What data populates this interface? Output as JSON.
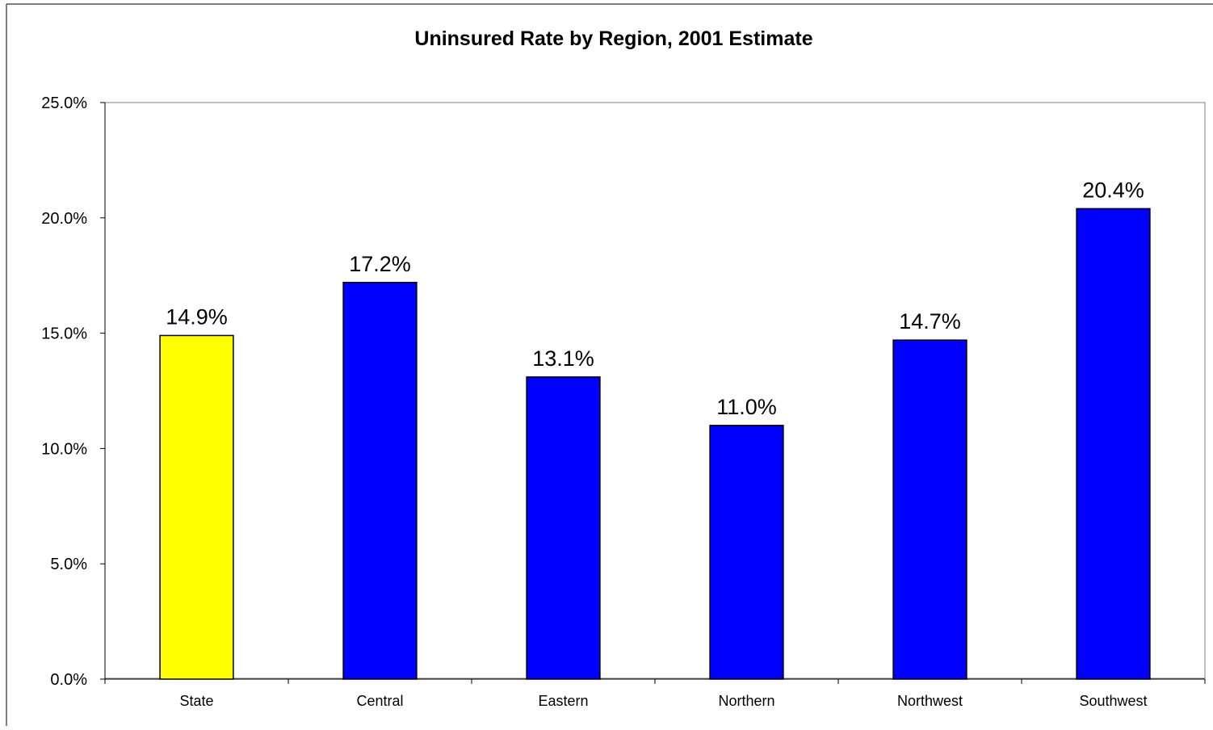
{
  "chart_data": {
    "type": "bar",
    "title": "Uninsured Rate by Region, 2001 Estimate",
    "xlabel": "",
    "ylabel": "",
    "categories": [
      "State",
      "Central",
      "Eastern",
      "Northern",
      "Northwest",
      "Southwest"
    ],
    "values": [
      14.9,
      17.2,
      13.1,
      11.0,
      14.7,
      20.4
    ],
    "data_labels": [
      "14.9%",
      "17.2%",
      "13.1%",
      "11.0%",
      "14.7%",
      "20.4%"
    ],
    "bar_colors": [
      "#FFFF00",
      "#0000FF",
      "#0000FF",
      "#0000FF",
      "#0000FF",
      "#0000FF"
    ],
    "ylim": [
      0,
      25
    ],
    "yticks": [
      0,
      5,
      10,
      15,
      20,
      25
    ],
    "ytick_labels": [
      "0.0%",
      "5.0%",
      "10.0%",
      "15.0%",
      "20.0%",
      "25.0%"
    ],
    "grid": false,
    "legend": "none"
  }
}
